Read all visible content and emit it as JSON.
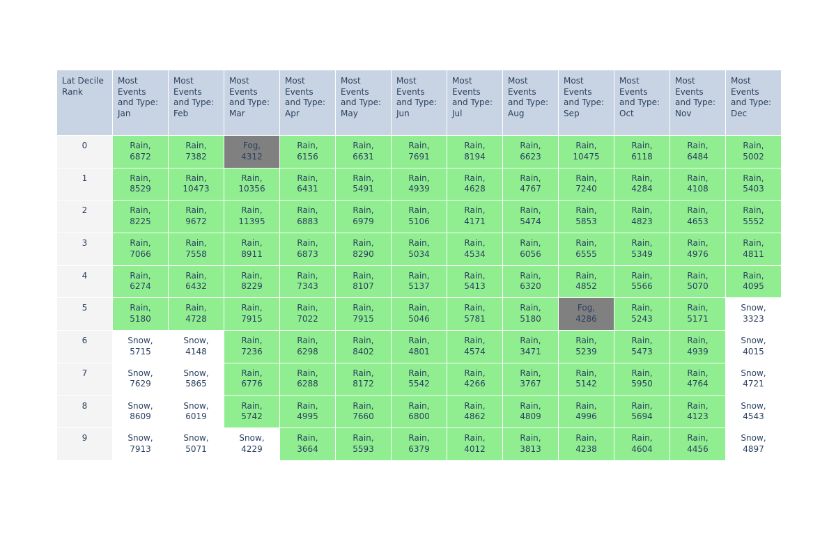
{
  "chart_data": {
    "type": "table",
    "columns": [
      "Lat Decile Rank",
      "Most Events and Type: Jan",
      "Most Events and Type: Feb",
      "Most Events and Type: Mar",
      "Most Events and Type: Apr",
      "Most Events and Type: May",
      "Most Events and Type: Jun",
      "Most Events and Type: Jul",
      "Most Events and Type: Aug",
      "Most Events and Type: Sep",
      "Most Events and Type: Oct",
      "Most Events and Type: Nov",
      "Most Events and Type: Dec"
    ],
    "rows": [
      {
        "rank": "0",
        "cells": [
          "Rain, 6872",
          "Rain, 7382",
          "Fog, 4312",
          "Rain, 6156",
          "Rain, 6631",
          "Rain, 7691",
          "Rain, 8194",
          "Rain, 6623",
          "Rain, 10475",
          "Rain, 6118",
          "Rain, 6484",
          "Rain, 5002"
        ]
      },
      {
        "rank": "1",
        "cells": [
          "Rain, 8529",
          "Rain, 10473",
          "Rain, 10356",
          "Rain, 6431",
          "Rain, 5491",
          "Rain, 4939",
          "Rain, 4628",
          "Rain, 4767",
          "Rain, 7240",
          "Rain, 4284",
          "Rain, 4108",
          "Rain, 5403"
        ]
      },
      {
        "rank": "2",
        "cells": [
          "Rain, 8225",
          "Rain, 9672",
          "Rain, 11395",
          "Rain, 6883",
          "Rain, 6979",
          "Rain, 5106",
          "Rain, 4171",
          "Rain, 5474",
          "Rain, 5853",
          "Rain, 4823",
          "Rain, 4653",
          "Rain, 5552"
        ]
      },
      {
        "rank": "3",
        "cells": [
          "Rain, 7066",
          "Rain, 7558",
          "Rain, 8911",
          "Rain, 6873",
          "Rain, 8290",
          "Rain, 5034",
          "Rain, 4534",
          "Rain, 6056",
          "Rain, 6555",
          "Rain, 5349",
          "Rain, 4976",
          "Rain, 4811"
        ]
      },
      {
        "rank": "4",
        "cells": [
          "Rain, 6274",
          "Rain, 6432",
          "Rain, 8229",
          "Rain, 7343",
          "Rain, 8107",
          "Rain, 5137",
          "Rain, 5413",
          "Rain, 6320",
          "Rain, 4852",
          "Rain, 5566",
          "Rain, 5070",
          "Rain, 4095"
        ]
      },
      {
        "rank": "5",
        "cells": [
          "Rain, 5180",
          "Rain, 4728",
          "Rain, 7915",
          "Rain, 7022",
          "Rain, 7915",
          "Rain, 5046",
          "Rain, 5781",
          "Rain, 5180",
          "Fog, 4286",
          "Rain, 5243",
          "Rain, 5171",
          "Snow, 3323"
        ]
      },
      {
        "rank": "6",
        "cells": [
          "Snow, 5715",
          "Snow, 4148",
          "Rain, 7236",
          "Rain, 6298",
          "Rain, 8402",
          "Rain, 4801",
          "Rain, 4574",
          "Rain, 3471",
          "Rain, 5239",
          "Rain, 5473",
          "Rain, 4939",
          "Snow, 4015"
        ]
      },
      {
        "rank": "7",
        "cells": [
          "Snow, 7629",
          "Snow, 5865",
          "Rain, 6776",
          "Rain, 6288",
          "Rain, 8172",
          "Rain, 5542",
          "Rain, 4266",
          "Rain, 3767",
          "Rain, 5142",
          "Rain, 5950",
          "Rain, 4764",
          "Snow, 4721"
        ]
      },
      {
        "rank": "8",
        "cells": [
          "Snow, 8609",
          "Snow, 6019",
          "Rain, 5742",
          "Rain, 4995",
          "Rain, 7660",
          "Rain, 6800",
          "Rain, 4862",
          "Rain, 4809",
          "Rain, 4996",
          "Rain, 5694",
          "Rain, 4123",
          "Snow, 4543"
        ]
      },
      {
        "rank": "9",
        "cells": [
          "Snow, 7913",
          "Snow, 5071",
          "Snow, 4229",
          "Rain, 3664",
          "Rain, 5593",
          "Rain, 6379",
          "Rain, 4012",
          "Rain, 3813",
          "Rain, 4238",
          "Rain, 4604",
          "Rain, 4456",
          "Snow, 4897"
        ]
      }
    ],
    "cell_colors": {
      "header": "#c8d4e3",
      "rank": "#f4f4f4",
      "Rain": "#90ee90",
      "Fog": "#808080",
      "Snow": "#ffffff",
      "text": "#2a3f5f"
    }
  }
}
